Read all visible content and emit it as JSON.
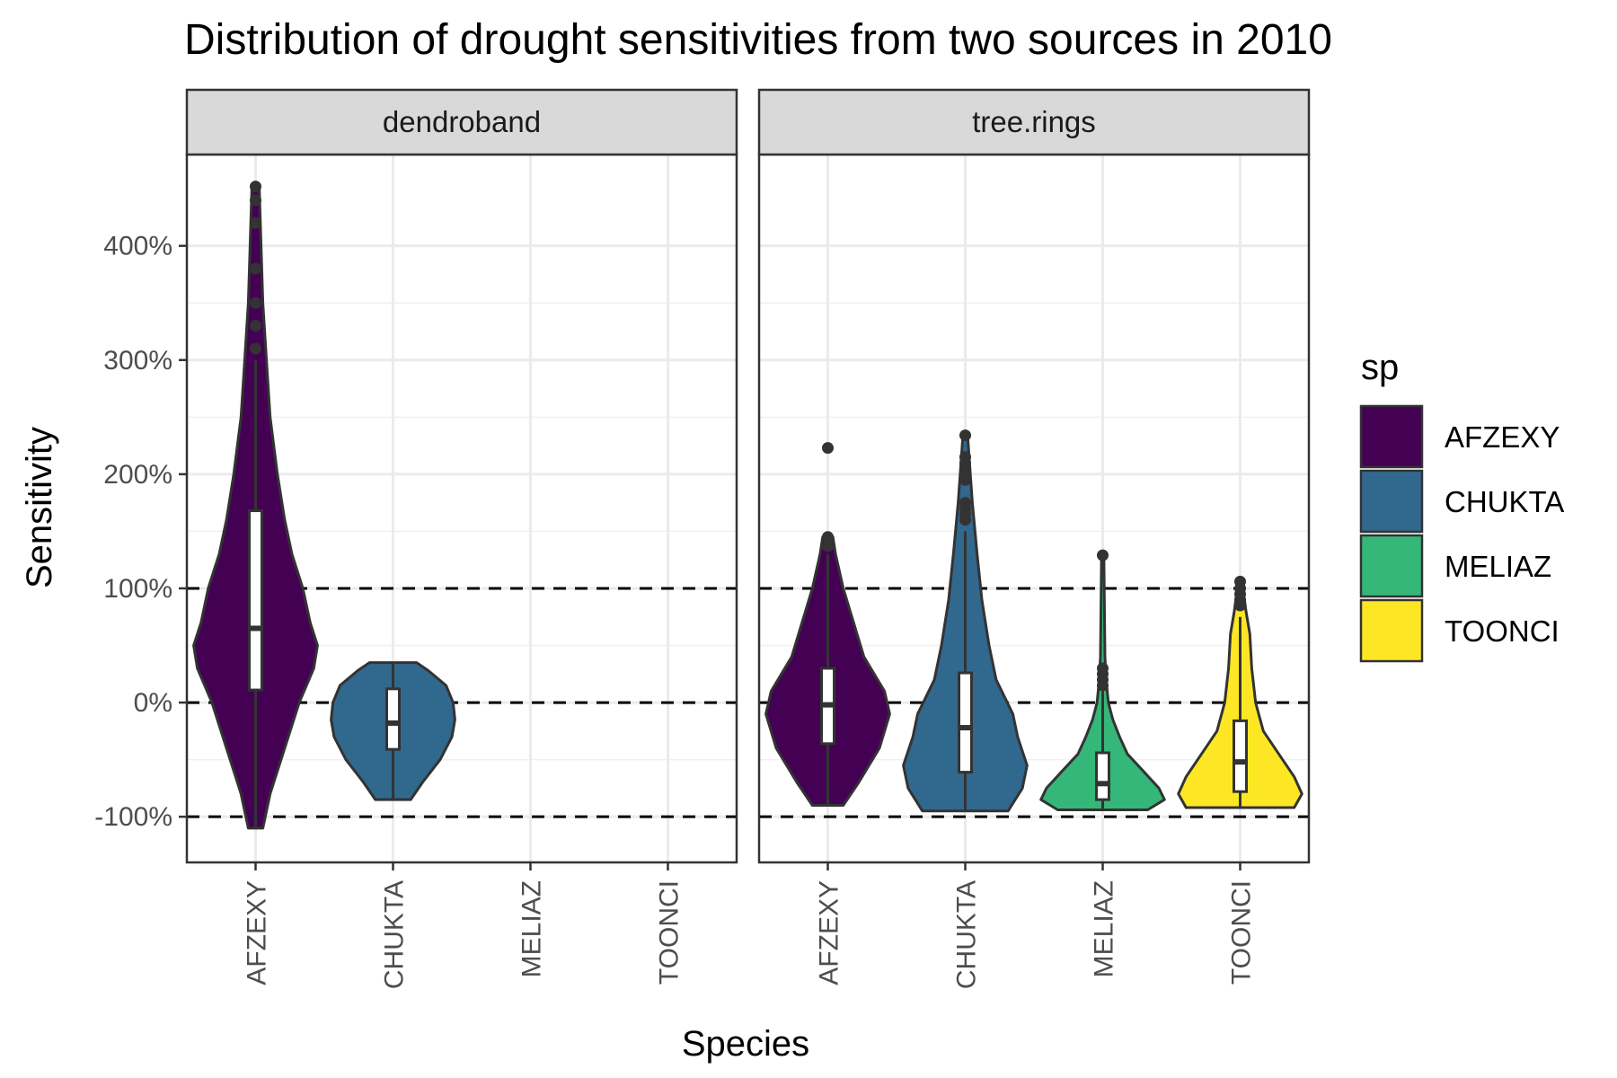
{
  "chart_data": {
    "type": "violin",
    "title": "Distribution of drought sensitivities from two sources in 2010",
    "xlabel": "Species",
    "ylabel": "Sensitivity",
    "y_ticks": [
      {
        "value": -100,
        "label": "-100%"
      },
      {
        "value": 0,
        "label": "0%"
      },
      {
        "value": 100,
        "label": "100%"
      },
      {
        "value": 200,
        "label": "200%"
      },
      {
        "value": 300,
        "label": "300%"
      },
      {
        "value": 400,
        "label": "400%"
      }
    ],
    "ylim": [
      -140,
      480
    ],
    "reference_lines": [
      -100,
      0,
      100
    ],
    "grid": true,
    "legend": {
      "title": "sp",
      "position": "right",
      "entries": [
        {
          "name": "AFZEXY",
          "color": "#440154"
        },
        {
          "name": "CHUKTA",
          "color": "#31688E"
        },
        {
          "name": "MELIAZ",
          "color": "#35B779"
        },
        {
          "name": "TOONCI",
          "color": "#FDE725"
        }
      ]
    },
    "categories": [
      "AFZEXY",
      "CHUKTA",
      "MELIAZ",
      "TOONCI"
    ],
    "panels": [
      {
        "name": "dendroband",
        "series": [
          {
            "name": "AFZEXY",
            "min": -110,
            "max": 452,
            "box": {
              "q1": 11,
              "median": 65,
              "q3": 168,
              "whisker_low": -110,
              "whisker_high": 300
            },
            "outliers": [
              452,
              440,
              420,
              380,
              350,
              330,
              310
            ],
            "density": [
              [
                -110,
                2
              ],
              [
                -80,
                4
              ],
              [
                -40,
                8
              ],
              [
                0,
                12
              ],
              [
                30,
                16
              ],
              [
                50,
                17
              ],
              [
                70,
                15
              ],
              [
                100,
                13
              ],
              [
                130,
                10
              ],
              [
                160,
                8
              ],
              [
                200,
                6
              ],
              [
                250,
                4
              ],
              [
                300,
                3
              ],
              [
                350,
                2
              ],
              [
                400,
                1.5
              ],
              [
                452,
                1
              ]
            ]
          },
          {
            "name": "CHUKTA",
            "min": -85,
            "max": 35,
            "box": {
              "q1": -41,
              "median": -18,
              "q3": 12,
              "whisker_low": -85,
              "whisker_high": 35
            },
            "outliers": [],
            "density": [
              [
                -85,
                30
              ],
              [
                -70,
                50
              ],
              [
                -50,
                80
              ],
              [
                -30,
                100
              ],
              [
                -15,
                105
              ],
              [
                0,
                102
              ],
              [
                15,
                90
              ],
              [
                28,
                60
              ],
              [
                35,
                40
              ]
            ]
          },
          {
            "name": "MELIAZ",
            "empty": true
          },
          {
            "name": "TOONCI",
            "empty": true
          }
        ]
      },
      {
        "name": "tree.rings",
        "series": [
          {
            "name": "AFZEXY",
            "min": -90,
            "max": 223,
            "box": {
              "q1": -36,
              "median": -2,
              "q3": 30,
              "whisker_low": -90,
              "whisker_high": 130
            },
            "outliers": [
              223,
              145,
              137
            ],
            "density": [
              [
                -90,
                6
              ],
              [
                -70,
                12
              ],
              [
                -40,
                20
              ],
              [
                -10,
                24
              ],
              [
                10,
                22
              ],
              [
                40,
                14
              ],
              [
                70,
                10
              ],
              [
                100,
                6
              ],
              [
                130,
                3
              ],
              [
                145,
                2
              ]
            ]
          },
          {
            "name": "CHUKTA",
            "min": -95,
            "max": 234,
            "box": {
              "q1": -61,
              "median": -22,
              "q3": 26,
              "whisker_low": -95,
              "whisker_high": 150
            },
            "outliers": [
              234,
              215,
              210,
              205,
              200,
              195,
              175,
              170,
              165,
              160
            ],
            "density": [
              [
                -95,
                18
              ],
              [
                -75,
                24
              ],
              [
                -55,
                26
              ],
              [
                -30,
                22
              ],
              [
                -10,
                20
              ],
              [
                20,
                13
              ],
              [
                50,
                10
              ],
              [
                90,
                7
              ],
              [
                130,
                5
              ],
              [
                175,
                3
              ],
              [
                234,
                1
              ]
            ]
          },
          {
            "name": "MELIAZ",
            "min": -94,
            "max": 129,
            "box": {
              "q1": -85,
              "median": -71,
              "q3": -44,
              "whisker_low": -94,
              "whisker_high": 10
            },
            "outliers": [
              129,
              30,
              25,
              20,
              15
            ],
            "density": [
              [
                -94,
                40
              ],
              [
                -85,
                55
              ],
              [
                -75,
                50
              ],
              [
                -60,
                36
              ],
              [
                -45,
                22
              ],
              [
                -30,
                15
              ],
              [
                -15,
                9
              ],
              [
                0,
                5
              ],
              [
                20,
                3
              ],
              [
                40,
                2
              ],
              [
                129,
                1
              ]
            ]
          },
          {
            "name": "TOONCI",
            "min": -92,
            "max": 106,
            "box": {
              "q1": -78,
              "median": -52,
              "q3": -16,
              "whisker_low": -92,
              "whisker_high": 75
            },
            "outliers": [
              106,
              100,
              95,
              90,
              85
            ],
            "density": [
              [
                -92,
                28
              ],
              [
                -80,
                32
              ],
              [
                -65,
                28
              ],
              [
                -45,
                20
              ],
              [
                -25,
                12
              ],
              [
                0,
                8
              ],
              [
                30,
                6
              ],
              [
                60,
                5
              ],
              [
                80,
                3
              ],
              [
                106,
                1
              ]
            ]
          }
        ]
      }
    ]
  }
}
